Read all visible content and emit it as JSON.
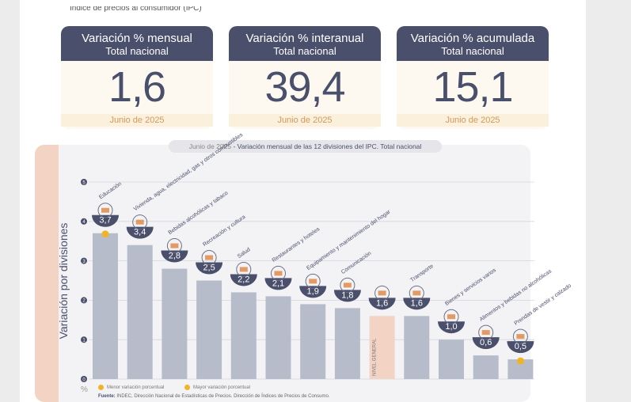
{
  "top_text": "Índice de precios al consumidor (IPC)",
  "cards": [
    {
      "title": "Variación % mensual",
      "subtitle": "Total nacional",
      "value": "1,6",
      "date": "Junio de 2025"
    },
    {
      "title": "Variación % interanual",
      "subtitle": "Total nacional",
      "value": "39,4",
      "date": "Junio de 2025"
    },
    {
      "title": "Variación % acumulada",
      "subtitle": "Total nacional",
      "value": "15,1",
      "date": "Junio de 2025"
    }
  ],
  "chart_title_date": "Junio de 2025",
  "chart_title_text": " - Variación mensual de las 12 divisiones del IPC. Total nacional",
  "chart_data": {
    "type": "bar",
    "title": "Junio de 2025 - Variación mensual de las 12 divisiones del IPC. Total nacional",
    "ylabel": "Variación por divisiones",
    "yunit": "%",
    "ylim": [
      0,
      5
    ],
    "yticks": [
      "0",
      "1",
      "2",
      "3",
      "4",
      "5"
    ],
    "grid": true,
    "categories": [
      "Educación",
      "Vivienda, agua, electricidad, gas y otros combustibles",
      "Bebidas alcohólicas y tabaco",
      "Recreación y cultura",
      "Salud",
      "Restaurantes y hoteles",
      "Equipamiento y mantenimiento del hogar",
      "Comunicación",
      "NIVEL GENERAL",
      "Transporte",
      "Bienes y servicios varios",
      "Alimentos y bebidas no alcohólicas",
      "Prendas de vestir y calzado"
    ],
    "values": [
      3.7,
      3.4,
      2.8,
      2.5,
      2.2,
      2.1,
      1.9,
      1.8,
      1.6,
      1.6,
      1.0,
      0.6,
      0.5
    ],
    "value_labels": [
      "3,7",
      "3,4",
      "2,8",
      "2,5",
      "2,2",
      "2,1",
      "1,9",
      "1,8",
      "1,6",
      "1,6",
      "1,0",
      "0,6",
      "0,5"
    ],
    "highlight_index": 8,
    "highlight_bar_label": "NIVEL GENERAL",
    "max_marker_index": 0,
    "min_marker_index": 12,
    "colors": {
      "bar": "#b7bccb",
      "highlight": "#f3d3c3",
      "badge": "#4a4f6b",
      "marker": "#f0b429",
      "icon": "#e08a4a"
    }
  },
  "legend": {
    "min_label": "Menor variación porcentual",
    "max_label": "Mayor variación porcentual"
  },
  "source": {
    "label": "Fuente:",
    "text": " INDEC, Dirección Nacional de Estadísticas de Precios. Dirección de Índices de Precios de Consumo."
  }
}
